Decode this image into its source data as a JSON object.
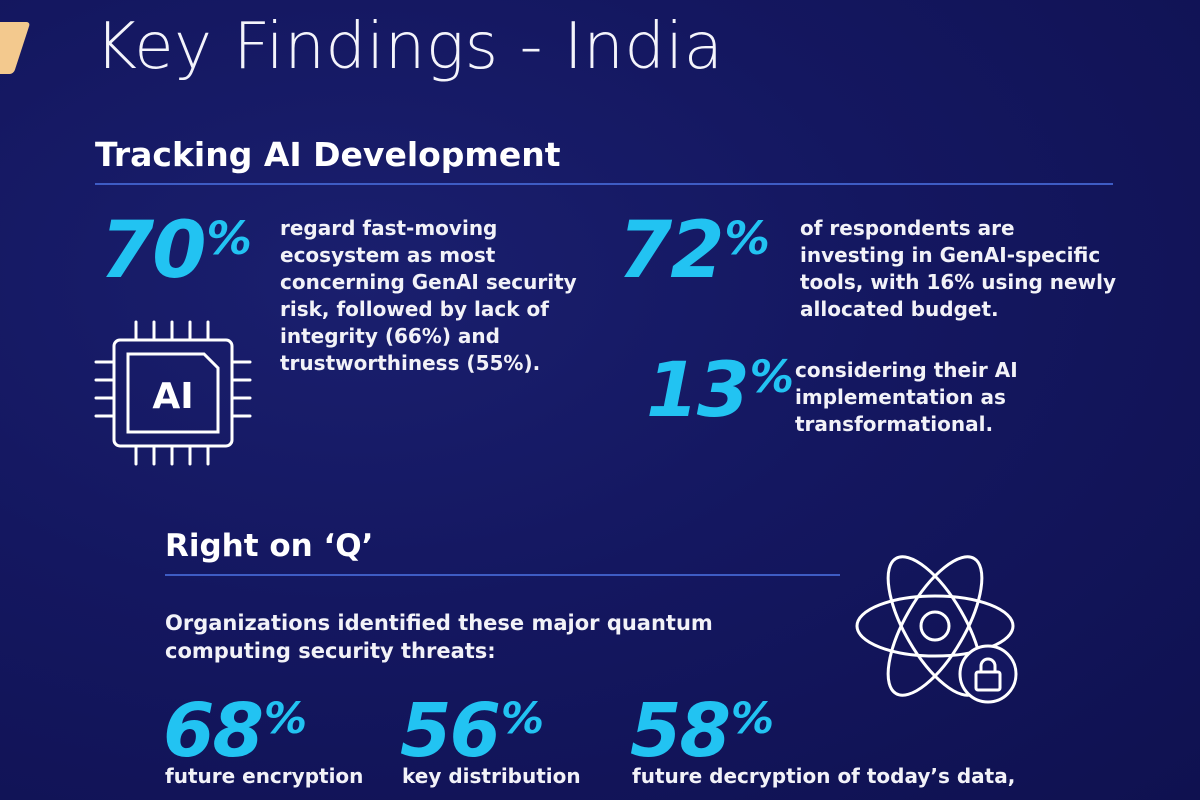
{
  "title": "Key Findings - India",
  "colors": {
    "background": "#141760",
    "accent": "#22c3f2",
    "rule": "#3e5cc4",
    "tab": "#f3c98e"
  },
  "section1": {
    "heading": "Tracking AI Development",
    "icon": "ai-chip-icon",
    "chip_label": "AI",
    "stats": [
      {
        "value": "70",
        "unit": "%",
        "text": "regard fast-moving ecosystem as most concerning GenAI security risk, followed by lack of integrity (66%) and trustworthiness (55%)."
      },
      {
        "value": "72",
        "unit": "%",
        "text": "of respondents are investing in GenAI-specific tools, with 16% using newly allocated budget."
      },
      {
        "value": "13",
        "unit": "%",
        "text": "considering their AI implementation as transformational."
      }
    ]
  },
  "section2": {
    "heading": "Right on ‘Q’",
    "icon": "atom-lock-icon",
    "intro": "Organizations identified these major quantum computing security threats:",
    "stats": [
      {
        "value": "68",
        "unit": "%",
        "label": "future encryption"
      },
      {
        "value": "56",
        "unit": "%",
        "label": "key distribution"
      },
      {
        "value": "58",
        "unit": "%",
        "label": "future decryption of today’s data,"
      }
    ]
  }
}
